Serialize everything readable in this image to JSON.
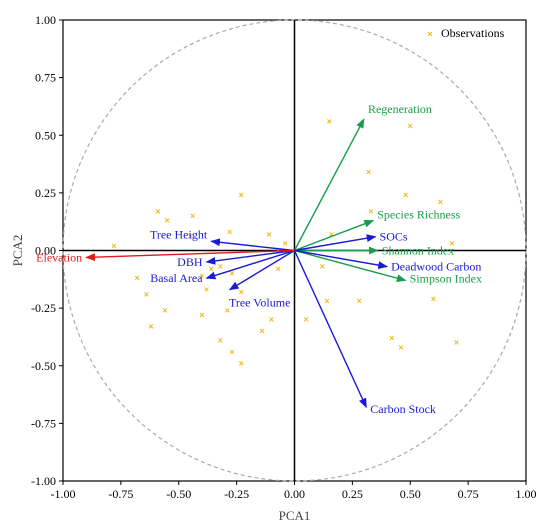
{
  "chart_data": {
    "type": "scatter",
    "xlabel": "PCA1",
    "ylabel": "PCA2",
    "xlim": [
      -1.0,
      1.0
    ],
    "ylim": [
      -1.0,
      1.0
    ],
    "xticks": [
      "-1.00",
      "-0.75",
      "-0.50",
      "-0.25",
      "0.00",
      "0.25",
      "0.50",
      "0.75",
      "1.00"
    ],
    "yticks": [
      "1.00",
      "0.75",
      "0.50",
      "0.25",
      "0.00",
      "-0.25",
      "-0.50",
      "-0.75",
      "-1.00"
    ],
    "xtick_values": [
      -1.0,
      -0.75,
      -0.5,
      -0.25,
      0.0,
      0.25,
      0.5,
      0.75,
      1.0
    ],
    "ytick_values": [
      1.0,
      0.75,
      0.5,
      0.25,
      0.0,
      -0.25,
      -0.5,
      -0.75,
      -1.0
    ],
    "unit_circle": true,
    "legend": {
      "position": "top-right",
      "entries": [
        {
          "label": "Observations",
          "marker": "×",
          "color": "#f5b81a"
        }
      ]
    },
    "observations": {
      "name": "Observations",
      "color": "#f5b81a",
      "points": [
        [
          -0.78,
          0.02
        ],
        [
          -0.59,
          0.17
        ],
        [
          -0.55,
          0.13
        ],
        [
          -0.44,
          0.15
        ],
        [
          -0.23,
          0.24
        ],
        [
          -0.28,
          0.08
        ],
        [
          -0.45,
          0.06
        ],
        [
          -0.11,
          0.07
        ],
        [
          -0.04,
          0.03
        ],
        [
          -0.07,
          0.0
        ],
        [
          -0.07,
          -0.08
        ],
        [
          -0.36,
          -0.08
        ],
        [
          -0.32,
          -0.07
        ],
        [
          -0.27,
          -0.1
        ],
        [
          -0.4,
          -0.11
        ],
        [
          -0.38,
          -0.17
        ],
        [
          -0.64,
          -0.19
        ],
        [
          -0.68,
          -0.12
        ],
        [
          -0.56,
          -0.26
        ],
        [
          -0.62,
          -0.33
        ],
        [
          -0.4,
          -0.28
        ],
        [
          -0.29,
          -0.26
        ],
        [
          -0.14,
          -0.35
        ],
        [
          -0.23,
          -0.18
        ],
        [
          -0.32,
          -0.39
        ],
        [
          -0.27,
          -0.44
        ],
        [
          -0.23,
          -0.49
        ],
        [
          -0.1,
          -0.3
        ],
        [
          0.15,
          0.56
        ],
        [
          0.5,
          0.54
        ],
        [
          0.32,
          0.34
        ],
        [
          0.48,
          0.24
        ],
        [
          0.63,
          0.21
        ],
        [
          0.16,
          0.07
        ],
        [
          0.33,
          0.17
        ],
        [
          0.68,
          0.03
        ],
        [
          0.12,
          -0.07
        ],
        [
          0.14,
          -0.22
        ],
        [
          0.28,
          -0.22
        ],
        [
          0.05,
          -0.3
        ],
        [
          0.6,
          -0.21
        ],
        [
          0.42,
          -0.38
        ],
        [
          0.46,
          -0.42
        ],
        [
          0.7,
          -0.4
        ]
      ]
    },
    "vectors": [
      {
        "label": "Regeneration",
        "x": 0.3,
        "y": 0.57,
        "color": "#1a9c4a"
      },
      {
        "label": "Species Richness",
        "x": 0.34,
        "y": 0.13,
        "color": "#1a9c4a"
      },
      {
        "label": "Shannon Index",
        "x": 0.36,
        "y": 0.0,
        "color": "#1a9c4a"
      },
      {
        "label": "Simpson Index",
        "x": 0.48,
        "y": -0.13,
        "color": "#1a9c4a"
      },
      {
        "label": "SOCs",
        "x": 0.35,
        "y": 0.06,
        "color": "#1a1ad6"
      },
      {
        "label": "Deadwood Carbon",
        "x": 0.4,
        "y": -0.07,
        "color": "#1a1ad6"
      },
      {
        "label": "Carbon Stock",
        "x": 0.31,
        "y": -0.68,
        "color": "#1a1ad6"
      },
      {
        "label": "Tree Height",
        "x": -0.36,
        "y": 0.04,
        "color": "#1a1ad6"
      },
      {
        "label": "DBH",
        "x": -0.38,
        "y": -0.05,
        "color": "#1a1ad6"
      },
      {
        "label": "Basal Area",
        "x": -0.38,
        "y": -0.12,
        "color": "#1a1ad6"
      },
      {
        "label": "Tree Volume",
        "x": -0.28,
        "y": -0.17,
        "color": "#1a1ad6"
      },
      {
        "label": "Elevation",
        "x": -0.9,
        "y": -0.03,
        "color": "#e01b1b"
      }
    ]
  }
}
